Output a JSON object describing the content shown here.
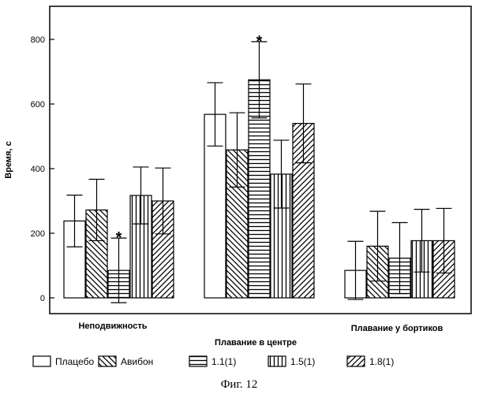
{
  "chart_data": {
    "type": "bar",
    "categories": [
      "Неподвижность",
      "Плавание в центре",
      "Плавание у бортиков"
    ],
    "series": [
      {
        "name": "Плацебо",
        "values": [
          238,
          568,
          85
        ],
        "errors": [
          80,
          98,
          90
        ],
        "pattern": "none"
      },
      {
        "name": "Авибон",
        "values": [
          272,
          458,
          160
        ],
        "errors": [
          95,
          115,
          108
        ],
        "pattern": "diagonal-down"
      },
      {
        "name": "1.1(1)",
        "values": [
          85,
          675,
          123
        ],
        "errors": [
          100,
          118,
          110
        ],
        "pattern": "horizontal"
      },
      {
        "name": "1.5(1)",
        "values": [
          317,
          383,
          177
        ],
        "errors": [
          88,
          105,
          97
        ],
        "pattern": "vertical"
      },
      {
        "name": "1.8(1)",
        "values": [
          300,
          540,
          177
        ],
        "errors": [
          102,
          122,
          100
        ],
        "pattern": "diagonal-up"
      }
    ],
    "significance": [
      {
        "category": "Неподвижность",
        "series": "1.1(1)",
        "mark": "*"
      },
      {
        "category": "Плавание в центре",
        "series": "1.1(1)",
        "mark": "*"
      }
    ],
    "ylabel": "Время, с",
    "xlabel": "",
    "yticks": [
      0,
      200,
      400,
      600,
      800
    ],
    "ylim": [
      -60,
      880
    ],
    "grid": false,
    "legend_position": "bottom"
  },
  "caption": "Фиг. 12"
}
